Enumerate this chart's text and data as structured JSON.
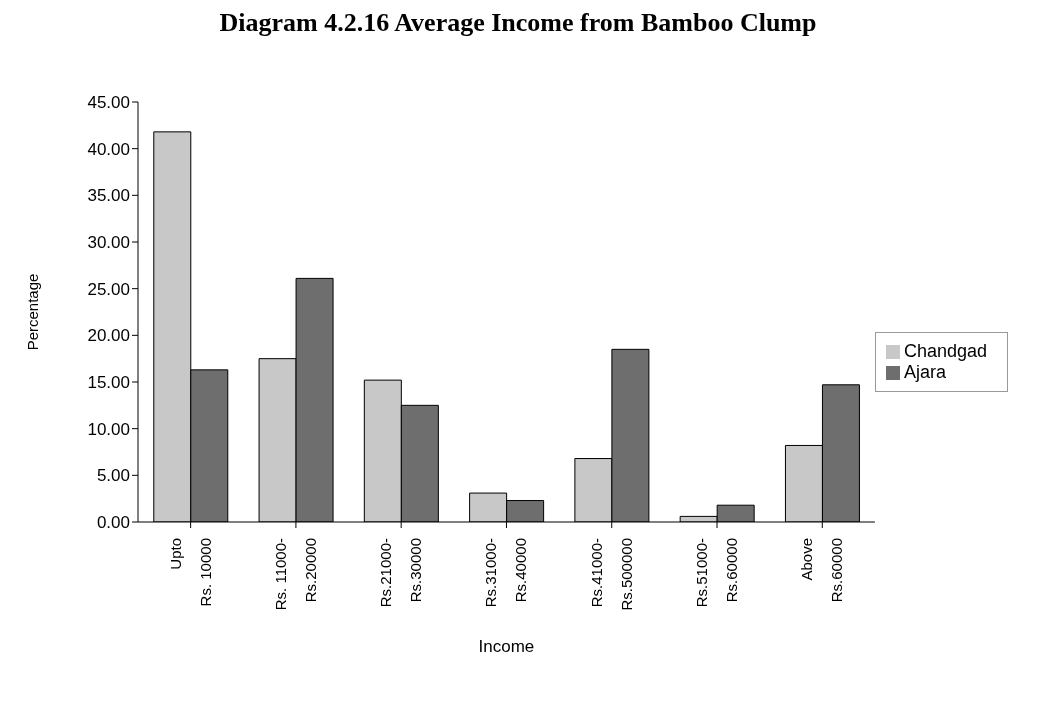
{
  "chart_data": {
    "type": "bar",
    "title": "Diagram 4.2.16 Average Income from Bamboo Clump",
    "xlabel": "Income",
    "ylabel": "Percentage",
    "categories": [
      "Upto\nRs. 10000",
      "Rs. 11000-\nRs.20000",
      "Rs.21000-\nRs.30000",
      "Rs.31000-\nRs.40000",
      "Rs.41000-\nRs.500000",
      "Rs.51000-\nRs.60000",
      "Above\nRs.60000"
    ],
    "series": [
      {
        "name": "Chandgad",
        "color": "#c8c8c8",
        "values": [
          41.8,
          17.5,
          15.2,
          3.1,
          6.8,
          0.6,
          8.2
        ]
      },
      {
        "name": "Ajara",
        "color": "#6e6e6e",
        "values": [
          16.3,
          26.1,
          12.5,
          2.3,
          18.5,
          1.8,
          14.7
        ]
      }
    ],
    "ylim": [
      0,
      45
    ],
    "yticks": [
      {
        "value": 0,
        "label": "0.00"
      },
      {
        "value": 5,
        "label": "5.00"
      },
      {
        "value": 10,
        "label": "10.00"
      },
      {
        "value": 15,
        "label": "15.00"
      },
      {
        "value": 20,
        "label": "20.00"
      },
      {
        "value": 25,
        "label": "25.00"
      },
      {
        "value": 30,
        "label": "30.00"
      },
      {
        "value": 35,
        "label": "35.00"
      },
      {
        "value": 40,
        "label": "40.00"
      },
      {
        "value": 45,
        "label": "45.00"
      }
    ],
    "legend": "right",
    "grid": false
  }
}
